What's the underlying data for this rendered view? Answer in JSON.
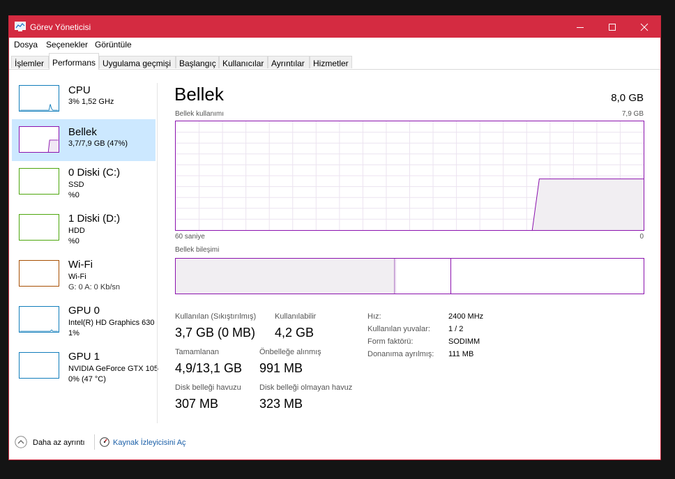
{
  "window": {
    "title": "Görev Yöneticisi"
  },
  "menu": [
    "Dosya",
    "Seçenekler",
    "Görüntüle"
  ],
  "tabs": [
    "İşlemler",
    "Performans",
    "Uygulama geçmişi",
    "Başlangıç",
    "Kullanıcılar",
    "Ayrıntılar",
    "Hizmetler"
  ],
  "sidebar": {
    "items": [
      {
        "name": "CPU",
        "line1": "3%  1,52 GHz",
        "line2": ""
      },
      {
        "name": "Bellek",
        "line1": "3,7/7,9 GB (47%)",
        "line2": ""
      },
      {
        "name": "0 Diski (C:)",
        "line1": "SSD",
        "line2": "%0"
      },
      {
        "name": "1 Diski (D:)",
        "line1": "HDD",
        "line2": "%0"
      },
      {
        "name": "Wi-Fi",
        "line1": "Wi-Fi",
        "line2": "G: 0  A: 0 Kb/sn"
      },
      {
        "name": "GPU 0",
        "line1": "Intel(R) HD Graphics 630",
        "line2": "1%"
      },
      {
        "name": "GPU 1",
        "line1": "NVIDIA GeForce GTX 105",
        "line2": "0%  (47 °C)"
      }
    ]
  },
  "main": {
    "title": "Bellek",
    "total": "8,0 GB",
    "usage_label": "Bellek kullanımı",
    "usage_max": "7,9 GB",
    "x_left": "60 saniye",
    "x_right": "0",
    "composition_label": "Bellek bileşimi",
    "usage_fraction": 0.47
  },
  "stats": {
    "in_use_label": "Kullanılan (Sıkıştırılmış)",
    "in_use_value": "3,7 GB (0 MB)",
    "available_label": "Kullanılabilir",
    "available_value": "4,2 GB",
    "committed_label": "Tamamlanan",
    "committed_value": "4,9/13,1 GB",
    "cached_label": "Önbelleğe alınmış",
    "cached_value": "991 MB",
    "paged_label": "Disk belleği havuzu",
    "paged_value": "307 MB",
    "nonpaged_label": "Disk belleği olmayan havuz",
    "nonpaged_value": "323 MB"
  },
  "specs": [
    {
      "label": "Hız:",
      "value": "2400 MHz"
    },
    {
      "label": "Kullanılan yuvalar:",
      "value": "1 / 2"
    },
    {
      "label": "Form faktörü:",
      "value": "SODIMM"
    },
    {
      "label": "Donanıma ayrılmış:",
      "value": "111 MB"
    }
  ],
  "footer": {
    "fewer_details": "Daha az ayrıntı",
    "resource_monitor": "Kaynak İzleyicisini Aç"
  },
  "colors": {
    "titlebar": "#d42b41",
    "memory": "#8b12ae",
    "cpu": "#117dbb",
    "disk": "#4da60c",
    "wifi": "#a74f01",
    "gpu": "#117dbb",
    "selected": "#cce8ff"
  }
}
